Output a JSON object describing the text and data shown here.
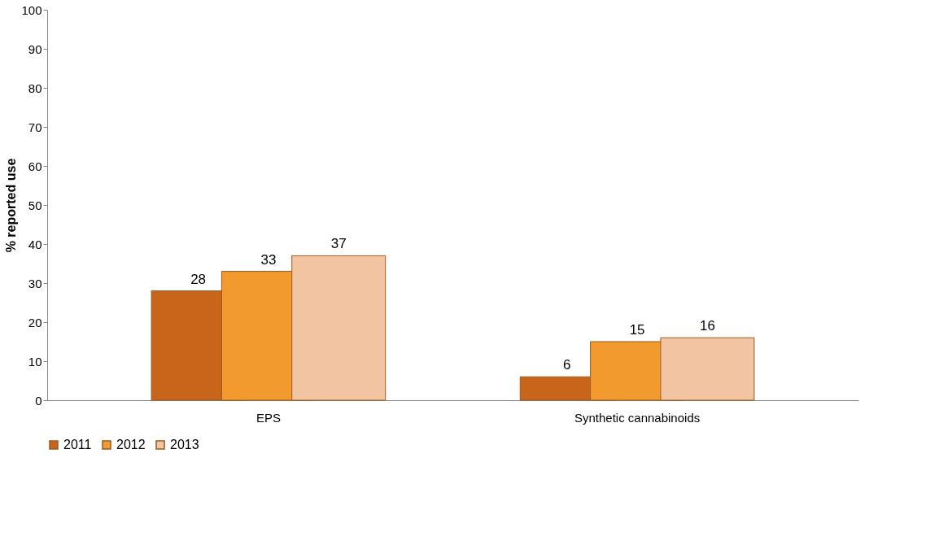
{
  "chart_data": {
    "type": "bar",
    "ylabel": "% reported use",
    "categories": [
      "EPS",
      "Synthetic cannabinoids"
    ],
    "series": [
      {
        "name": "2011",
        "color": "#c8651a",
        "values": [
          28,
          6
        ]
      },
      {
        "name": "2012",
        "color": "#f29a2e",
        "values": [
          33,
          15
        ]
      },
      {
        "name": "2013",
        "color": "#f2c4a2",
        "values": [
          37,
          16
        ]
      }
    ],
    "ylim": [
      0,
      100
    ],
    "yticks": [
      0,
      10,
      20,
      30,
      40,
      50,
      60,
      70,
      80,
      90,
      100
    ],
    "grid": false,
    "legend": "bottom",
    "data_labels": true
  }
}
